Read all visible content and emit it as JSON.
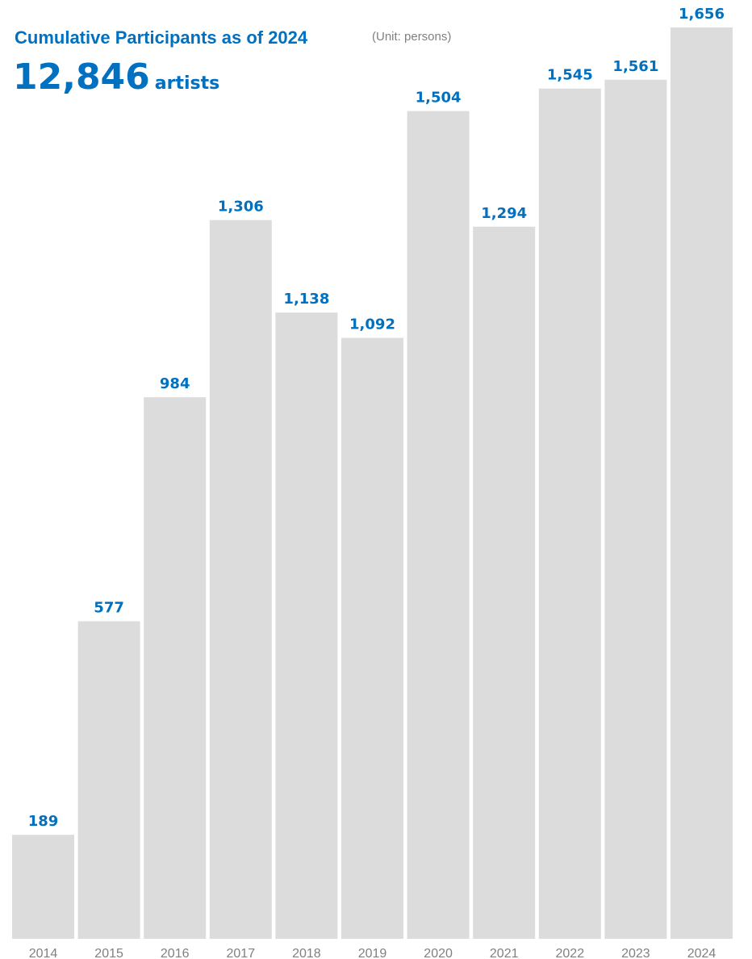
{
  "header": {
    "title": "Cumulative Participants as of 2024",
    "unit": "(Unit: persons)",
    "total_value": "12,846",
    "total_suffix": "artists"
  },
  "colors": {
    "accent": "#0070c0",
    "bar": "#dcdcdc",
    "axis_label": "#808080"
  },
  "chart_data": {
    "type": "bar",
    "categories": [
      "2014",
      "2015",
      "2016",
      "2017",
      "2018",
      "2019",
      "2020",
      "2021",
      "2022",
      "2023",
      "2024"
    ],
    "values": [
      189,
      577,
      984,
      1306,
      1138,
      1092,
      1504,
      1294,
      1545,
      1561,
      1656
    ],
    "data_labels": [
      "189",
      "577",
      "984",
      "1,306",
      "1,138",
      "1,092",
      "1,504",
      "1,294",
      "1,545",
      "1,561",
      "1,656"
    ],
    "title": "Cumulative Participants as of 2024",
    "xlabel": "",
    "ylabel": "",
    "unit": "(Unit: persons)",
    "ylim": [
      0,
      1656
    ],
    "grid": false,
    "legend": "none"
  }
}
